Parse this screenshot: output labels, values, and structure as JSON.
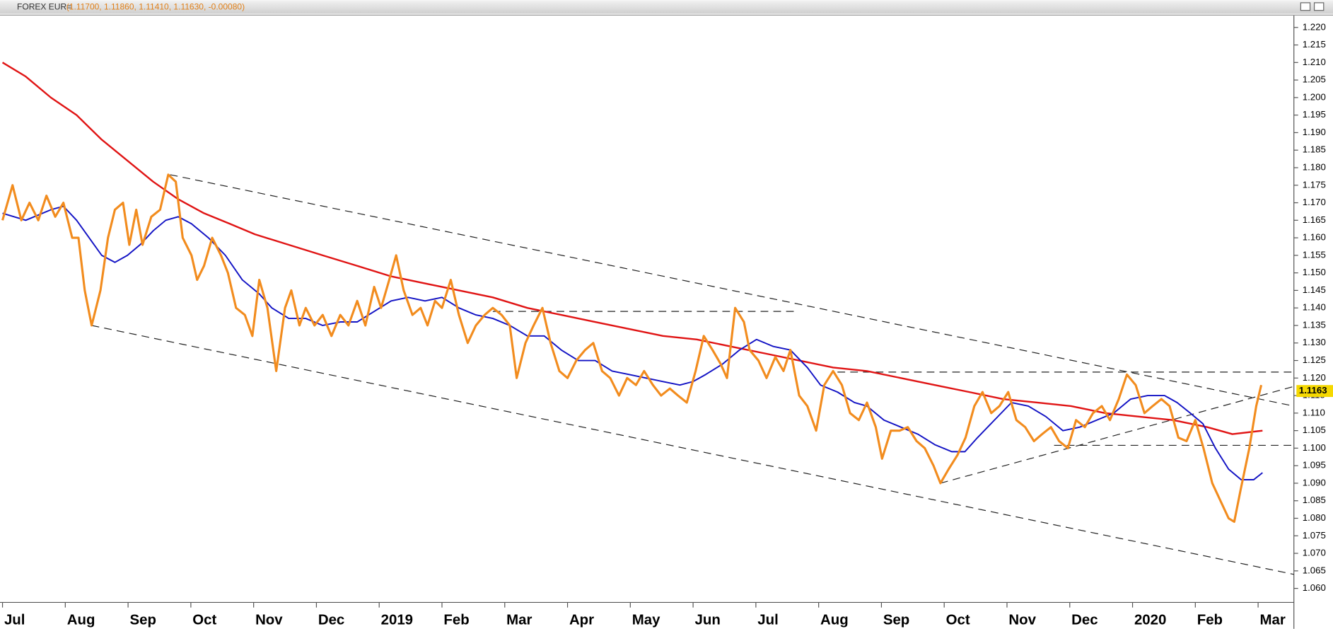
{
  "chart_data": {
    "type": "line",
    "title": "FOREX EUR=",
    "subtitle": "(1.11700, 1.11860, 1.11410, 1.11630, -0.00080)",
    "categories": [
      "Jul",
      "Aug",
      "Sep",
      "Oct",
      "Nov",
      "Dec",
      "2019",
      "Feb",
      "Mar",
      "Apr",
      "May",
      "Jun",
      "Jul",
      "Aug",
      "Sep",
      "Oct",
      "Nov",
      "Dec",
      "2020",
      "Feb",
      "Mar"
    ],
    "xlim": [
      -0.04,
      20.57
    ],
    "ylim": [
      1.056,
      1.2234
    ],
    "yticks": [
      {
        "value": 1.22,
        "label": "1.220"
      },
      1.215,
      {
        "value": 1.21,
        "label": "1.210"
      },
      1.205,
      {
        "value": 1.2,
        "label": "1.200"
      },
      1.195,
      {
        "value": 1.19,
        "label": "1.190"
      },
      1.185,
      {
        "value": 1.18,
        "label": "1.180"
      },
      1.175,
      {
        "value": 1.17,
        "label": "1.170"
      },
      1.165,
      {
        "value": 1.16,
        "label": "1.160"
      },
      1.155,
      {
        "value": 1.15,
        "label": "1.150"
      },
      1.145,
      {
        "value": 1.14,
        "label": "1.140"
      },
      1.135,
      {
        "value": 1.13,
        "label": "1.130"
      },
      1.125,
      {
        "value": 1.12,
        "label": "1.120"
      },
      1.115,
      {
        "value": 1.11,
        "label": "1.110"
      },
      1.105,
      {
        "value": 1.1,
        "label": "1.100"
      },
      1.095,
      {
        "value": 1.09,
        "label": "1.090"
      },
      1.085,
      {
        "value": 1.08,
        "label": "1.080"
      },
      1.075,
      {
        "value": 1.07,
        "label": "1.070"
      },
      1.065,
      {
        "value": 1.06,
        "label": "1.060"
      }
    ],
    "last_value": 1.1163,
    "series": [
      {
        "color": "#f28c1e",
        "width": 2.6,
        "x": [
          0,
          0.16,
          0.3,
          0.43,
          0.57,
          0.7,
          0.84,
          0.97,
          1.11,
          1.21,
          1.31,
          1.42,
          1.56,
          1.68,
          1.79,
          1.92,
          2.02,
          2.13,
          2.23,
          2.37,
          2.51,
          2.64,
          2.76,
          2.87,
          3.01,
          3.1,
          3.21,
          3.34,
          3.48,
          3.59,
          3.72,
          3.86,
          3.98,
          4.09,
          4.22,
          4.36,
          4.5,
          4.6,
          4.73,
          4.83,
          4.97,
          5.1,
          5.24,
          5.38,
          5.51,
          5.65,
          5.78,
          5.92,
          6.03,
          6.16,
          6.27,
          6.39,
          6.53,
          6.66,
          6.77,
          6.89,
          7.0,
          7.14,
          7.27,
          7.41,
          7.54,
          7.68,
          7.81,
          7.95,
          8.08,
          8.19,
          8.33,
          8.46,
          8.6,
          8.73,
          8.87,
          9.0,
          9.14,
          9.28,
          9.41,
          9.55,
          9.68,
          9.82,
          9.95,
          10.09,
          10.22,
          10.36,
          10.49,
          10.63,
          10.76,
          10.9,
          11.04,
          11.17,
          11.31,
          11.44,
          11.54,
          11.67,
          11.81,
          11.9,
          12.04,
          12.17,
          12.31,
          12.44,
          12.55,
          12.69,
          12.82,
          12.96,
          13.09,
          13.23,
          13.37,
          13.5,
          13.64,
          13.77,
          13.91,
          14.01,
          14.15,
          14.29,
          14.42,
          14.56,
          14.69,
          14.83,
          14.94,
          15.07,
          15.21,
          15.34,
          15.48,
          15.61,
          15.75,
          15.88,
          16.02,
          16.15,
          16.29,
          16.43,
          16.56,
          16.7,
          16.83,
          16.97,
          17.1,
          17.24,
          17.37,
          17.51,
          17.64,
          17.78,
          17.91,
          18.05,
          18.19,
          18.32,
          18.46,
          18.59,
          18.73,
          18.86,
          19.0,
          19.13,
          19.27,
          19.4,
          19.53,
          19.62,
          19.72,
          19.86,
          19.97,
          20.05
        ],
        "values": [
          1.165,
          1.175,
          1.165,
          1.17,
          1.165,
          1.172,
          1.166,
          1.17,
          1.16,
          1.16,
          1.145,
          1.135,
          1.145,
          1.16,
          1.168,
          1.17,
          1.158,
          1.168,
          1.158,
          1.166,
          1.168,
          1.178,
          1.176,
          1.16,
          1.155,
          1.148,
          1.152,
          1.16,
          1.155,
          1.15,
          1.14,
          1.138,
          1.132,
          1.148,
          1.14,
          1.122,
          1.14,
          1.145,
          1.135,
          1.14,
          1.135,
          1.138,
          1.132,
          1.138,
          1.135,
          1.142,
          1.135,
          1.146,
          1.14,
          1.148,
          1.155,
          1.145,
          1.138,
          1.14,
          1.135,
          1.142,
          1.14,
          1.148,
          1.138,
          1.13,
          1.135,
          1.138,
          1.14,
          1.138,
          1.135,
          1.12,
          1.13,
          1.135,
          1.14,
          1.13,
          1.122,
          1.12,
          1.125,
          1.128,
          1.13,
          1.122,
          1.12,
          1.115,
          1.12,
          1.118,
          1.122,
          1.118,
          1.115,
          1.117,
          1.115,
          1.113,
          1.122,
          1.132,
          1.128,
          1.124,
          1.12,
          1.14,
          1.136,
          1.128,
          1.125,
          1.12,
          1.126,
          1.122,
          1.128,
          1.115,
          1.112,
          1.105,
          1.118,
          1.122,
          1.118,
          1.11,
          1.108,
          1.113,
          1.106,
          1.097,
          1.105,
          1.105,
          1.106,
          1.102,
          1.1,
          1.095,
          1.09,
          1.094,
          1.098,
          1.103,
          1.112,
          1.116,
          1.11,
          1.112,
          1.116,
          1.108,
          1.106,
          1.102,
          1.104,
          1.106,
          1.102,
          1.1,
          1.108,
          1.106,
          1.11,
          1.112,
          1.108,
          1.114,
          1.121,
          1.118,
          1.11,
          1.112,
          1.114,
          1.112,
          1.103,
          1.102,
          1.108,
          1.1,
          1.09,
          1.085,
          1.08,
          1.079,
          1.088,
          1.1,
          1.112,
          1.118
        ]
      },
      {
        "color": "#1212c4",
        "width": 1.6,
        "x": [
          0,
          0.37,
          0.77,
          0.97,
          1.18,
          1.38,
          1.58,
          1.79,
          1.99,
          2.19,
          2.4,
          2.6,
          2.8,
          3.01,
          3.28,
          3.55,
          3.82,
          4.09,
          4.29,
          4.56,
          4.83,
          5.1,
          5.38,
          5.65,
          5.92,
          6.19,
          6.46,
          6.73,
          7.0,
          7.27,
          7.54,
          7.81,
          8.08,
          8.36,
          8.63,
          8.9,
          9.17,
          9.44,
          9.71,
          9.98,
          10.25,
          10.52,
          10.79,
          11.0,
          11.2,
          11.47,
          11.74,
          12.01,
          12.28,
          12.55,
          12.82,
          13.03,
          13.3,
          13.57,
          13.77,
          14.04,
          14.31,
          14.58,
          14.85,
          15.12,
          15.33,
          15.53,
          15.8,
          16.07,
          16.34,
          16.62,
          16.89,
          17.16,
          17.43,
          17.7,
          17.97,
          18.24,
          18.51,
          18.71,
          18.92,
          19.12,
          19.32,
          19.53,
          19.73,
          19.93,
          20.07
        ],
        "values": [
          1.167,
          1.165,
          1.168,
          1.169,
          1.165,
          1.16,
          1.155,
          1.153,
          1.155,
          1.158,
          1.162,
          1.165,
          1.166,
          1.164,
          1.16,
          1.155,
          1.148,
          1.144,
          1.14,
          1.137,
          1.137,
          1.135,
          1.136,
          1.136,
          1.139,
          1.142,
          1.143,
          1.142,
          1.143,
          1.14,
          1.138,
          1.137,
          1.135,
          1.132,
          1.132,
          1.128,
          1.125,
          1.125,
          1.122,
          1.121,
          1.12,
          1.119,
          1.118,
          1.119,
          1.121,
          1.124,
          1.128,
          1.131,
          1.129,
          1.128,
          1.123,
          1.118,
          1.116,
          1.113,
          1.112,
          1.108,
          1.106,
          1.104,
          1.101,
          1.099,
          1.099,
          1.103,
          1.108,
          1.113,
          1.112,
          1.109,
          1.105,
          1.106,
          1.108,
          1.11,
          1.114,
          1.115,
          1.115,
          1.113,
          1.11,
          1.107,
          1.1,
          1.094,
          1.091,
          1.091,
          1.093
        ]
      },
      {
        "color": "#e01414",
        "width": 2,
        "x": [
          0,
          0.37,
          0.77,
          1.18,
          1.58,
          1.99,
          2.4,
          2.8,
          3.21,
          3.62,
          4.02,
          4.56,
          5.1,
          5.65,
          6.19,
          6.73,
          7.27,
          7.81,
          8.36,
          8.9,
          9.44,
          9.98,
          10.52,
          11.06,
          11.6,
          12.15,
          12.69,
          13.23,
          13.77,
          14.31,
          14.85,
          15.4,
          15.94,
          16.48,
          17.02,
          17.56,
          18.1,
          18.65,
          19.19,
          19.59,
          20.07
        ],
        "values": [
          1.21,
          1.206,
          1.2,
          1.195,
          1.188,
          1.182,
          1.176,
          1.171,
          1.167,
          1.164,
          1.161,
          1.158,
          1.155,
          1.152,
          1.149,
          1.147,
          1.145,
          1.143,
          1.14,
          1.138,
          1.136,
          1.134,
          1.132,
          1.131,
          1.129,
          1.127,
          1.125,
          1.123,
          1.122,
          1.12,
          1.118,
          1.116,
          1.114,
          1.113,
          1.112,
          1.11,
          1.109,
          1.108,
          1.106,
          1.104,
          1.105
        ]
      }
    ],
    "trendlines": [
      {
        "x": [
          2.67,
          20.57
        ],
        "values": [
          1.178,
          1.112
        ]
      },
      {
        "x": [
          1.42,
          20.57
        ],
        "values": [
          1.135,
          1.064
        ]
      },
      {
        "x": [
          7.81,
          12.66
        ],
        "values": [
          1.139,
          1.139
        ]
      },
      {
        "x": [
          13.3,
          20.57
        ],
        "values": [
          1.1217,
          1.1217
        ]
      },
      {
        "x": [
          16.75,
          20.57
        ],
        "values": [
          1.1008,
          1.1008
        ]
      },
      {
        "x": [
          14.94,
          20.57
        ],
        "values": [
          1.09,
          1.1176
        ]
      }
    ]
  }
}
